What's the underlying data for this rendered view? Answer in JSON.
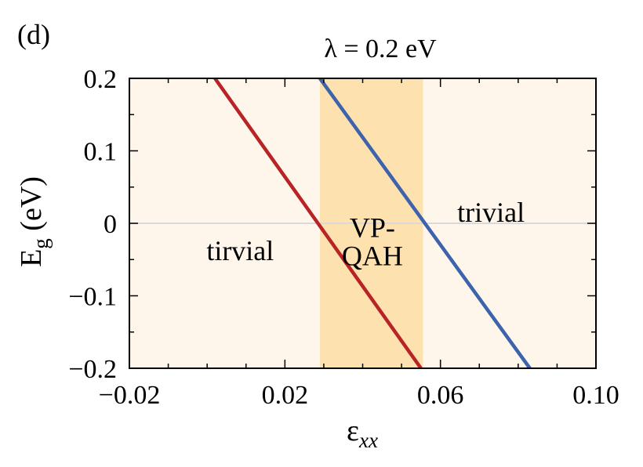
{
  "panel_label": "(d)",
  "chart_data": {
    "type": "line",
    "title": "λ = 0.2 eV",
    "xlabel": {
      "main": "ε",
      "subscript": "xx"
    },
    "ylabel": {
      "main": "E",
      "subscript": "g",
      "unit": " (eV)"
    },
    "xlim": [
      -0.02,
      0.1
    ],
    "ylim": [
      -0.2,
      0.2
    ],
    "xticks": [
      -0.02,
      0.02,
      0.06,
      0.1
    ],
    "xtick_labels": [
      "−0.02",
      "0.02",
      "0.06",
      "0.10"
    ],
    "yticks": [
      0.2,
      0.1,
      0,
      -0.1,
      -0.2
    ],
    "ytick_labels": [
      "0.2",
      "0.1",
      "0",
      "−0.1",
      "−0.2"
    ],
    "grid": false,
    "zero_line": {
      "y": 0,
      "color": "#d9d9d9"
    },
    "background_color": "#fef6ea",
    "shaded_region": {
      "x": [
        0.029,
        0.0555
      ],
      "color": "#fde1ae"
    },
    "series": [
      {
        "color": "#b82328",
        "x": [
          0.002,
          0.055
        ],
        "y": [
          0.2,
          -0.2
        ]
      },
      {
        "color": "#3e63ad",
        "x": [
          0.029,
          0.083
        ],
        "y": [
          0.2,
          -0.2
        ]
      }
    ],
    "annotations": [
      {
        "id": "left",
        "lines": [
          "tirvial"
        ],
        "x": 0.0085,
        "y": -0.038
      },
      {
        "id": "middle",
        "lines": [
          "VP-",
          "QAH"
        ],
        "x": 0.0425,
        "y": -0.0255
      },
      {
        "id": "right",
        "lines": [
          "trivial"
        ],
        "x": 0.073,
        "y": 0.015
      }
    ]
  }
}
